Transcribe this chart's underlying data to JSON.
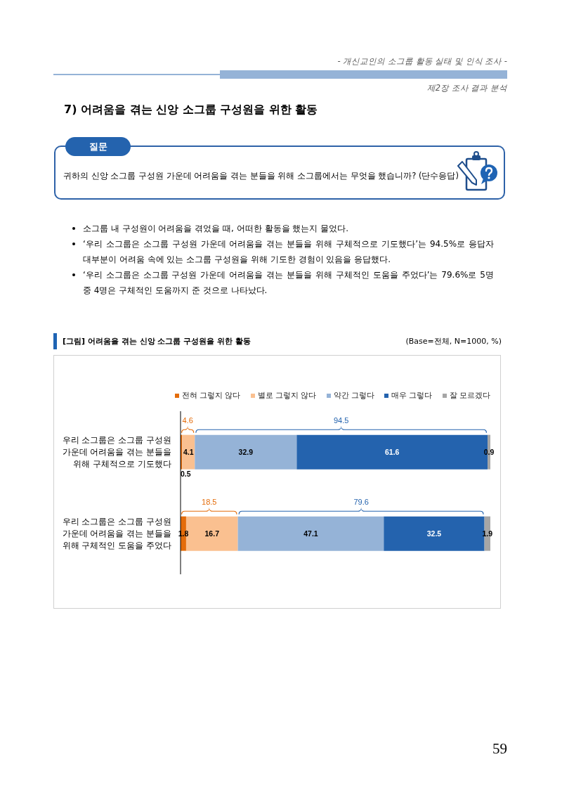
{
  "chart_data": {
    "type": "bar",
    "orientation": "horizontal",
    "stacked": true,
    "title": "[그림] 어려움을 겪는 신앙 소그룹 구성원을 위한 활동",
    "subtitle": "(Base=전체, N=1000, %)",
    "categories": [
      "우리 소그룹은 소그룹 구성원 가운데 어려움을 겪는 분들을 위해 구체적으로 기도했다",
      "우리 소그룹은 소그룹 구성원 가운데 어려움을 겪는 분들을 위해 구체적인 도움을 주었다"
    ],
    "series": [
      {
        "name": "전혀 그렇지 않다",
        "color": "#e46c0a",
        "values": [
          0.5,
          1.8
        ]
      },
      {
        "name": "별로 그렇지 않다",
        "color": "#fac090",
        "values": [
          4.1,
          16.7
        ]
      },
      {
        "name": "약간 그렇다",
        "color": "#95b3d7",
        "values": [
          32.9,
          47.1
        ]
      },
      {
        "name": "매우 그렇다",
        "color": "#2463ae",
        "values": [
          61.6,
          32.5
        ]
      },
      {
        "name": "잘 모르겠다",
        "color": "#a6a6a6",
        "values": [
          0.9,
          1.9
        ]
      }
    ],
    "legend": "top right",
    "data_labels": true,
    "tick_labels": "y",
    "annotations": [
      "- 개신교인의 소그룹 활동 실태 및 인식 조사 -",
      "제2장 조사 결과 분석",
      "7) 어려움을 겪는 신앙 소그룹 구성원을 위한 활동",
      "질문",
      "귀하의 신앙 소그룹 구성원 가운데 어려움을 겪는 분들을 위해 소그룹에서는 무엇을 했습니까? (단수응답)",
      "소그룹 내 구성원이 어려움을 겪었을 때, 어떠한 활동을 했는지 물었다.",
      "‘우리 소그룹은 소그룹 구성원 가운데 어려움을 겪는 분들을 위해 구체적으로 기도했다’는 94.5%로 응답자 대부분이 어려움 속에 있는 소그룹 구성원을 위해 기도한 경험이 있음을 응답했다.",
      "‘우리 소그룹은 소그룹 구성원 가운데 어려움을 겪는 분들을 위해 구체적인 도움을 주었다’는 79.6%로 5명 중 4명은 구체적인 도움까지 준 것으로 나타났다.",
      "4.6",
      "94.5",
      "18.5",
      "79.6",
      "59"
    ]
  }
}
